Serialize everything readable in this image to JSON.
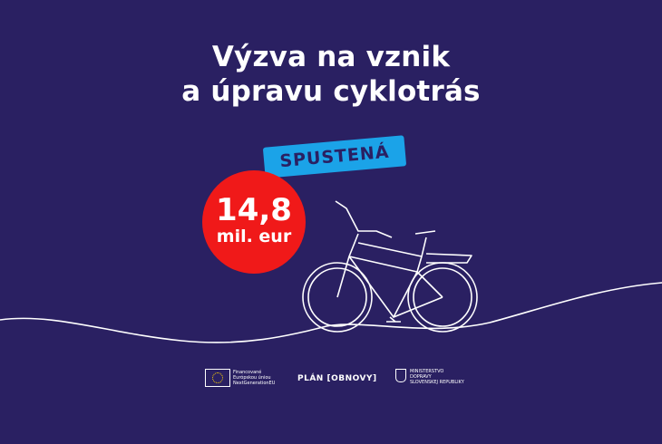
{
  "title": {
    "line1": "Výzva na vznik",
    "line2": "a úpravu cyklotrás"
  },
  "badge": "SPUSTENÁ",
  "amount": {
    "value": "14,8",
    "unit": "mil. eur"
  },
  "logos": {
    "eu": {
      "line1": "Financované",
      "line2": "Európskou úniou",
      "line3": "NextGenerationEU"
    },
    "plan": "PLÁN [OBNOVY]",
    "ministry": {
      "line1": "MINISTERSTVO",
      "line2": "DOPRAVY",
      "line3": "SLOVENSKEJ REPUBLIKY"
    }
  },
  "colors": {
    "background": "#2a2062",
    "badge": "#1ba3e8",
    "circle": "#f01919"
  }
}
